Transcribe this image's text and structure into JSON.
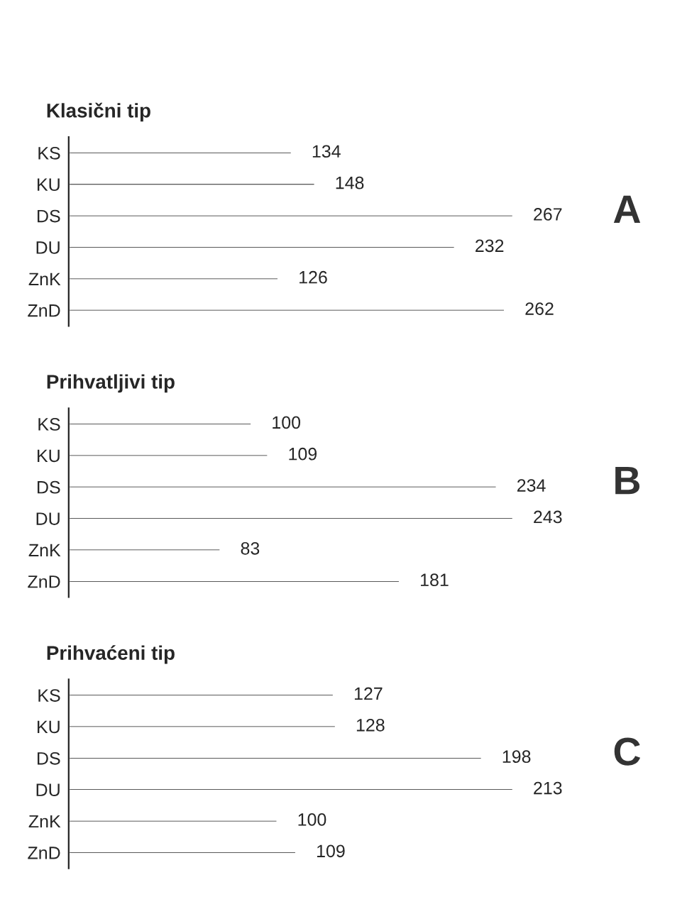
{
  "chart_data": [
    {
      "type": "bar",
      "orientation": "horizontal",
      "title": "Klasični tip",
      "categories": [
        "KS",
        "KU",
        "DS",
        "DU",
        "ZnK",
        "ZnD"
      ],
      "values": [
        134,
        148,
        267,
        232,
        126,
        262
      ],
      "color": "#222222",
      "data_labels": true,
      "annotations": [
        "A"
      ]
    },
    {
      "type": "bar",
      "orientation": "horizontal",
      "title": "Prihvatljivi tip",
      "categories": [
        "KS",
        "KU",
        "DS",
        "DU",
        "ZnK",
        "ZnD"
      ],
      "values": [
        100,
        109,
        234,
        243,
        83,
        181
      ],
      "color": "#222222",
      "data_labels": true,
      "annotations": [
        "B"
      ]
    },
    {
      "type": "bar",
      "orientation": "horizontal",
      "title": "Prihvaćeni tip",
      "categories": [
        "KS",
        "KU",
        "DS",
        "DU",
        "ZnK",
        "ZnD"
      ],
      "values": [
        127,
        128,
        198,
        213,
        100,
        109
      ],
      "color": "#222222",
      "data_labels": true,
      "annotations": [
        "C"
      ]
    }
  ]
}
